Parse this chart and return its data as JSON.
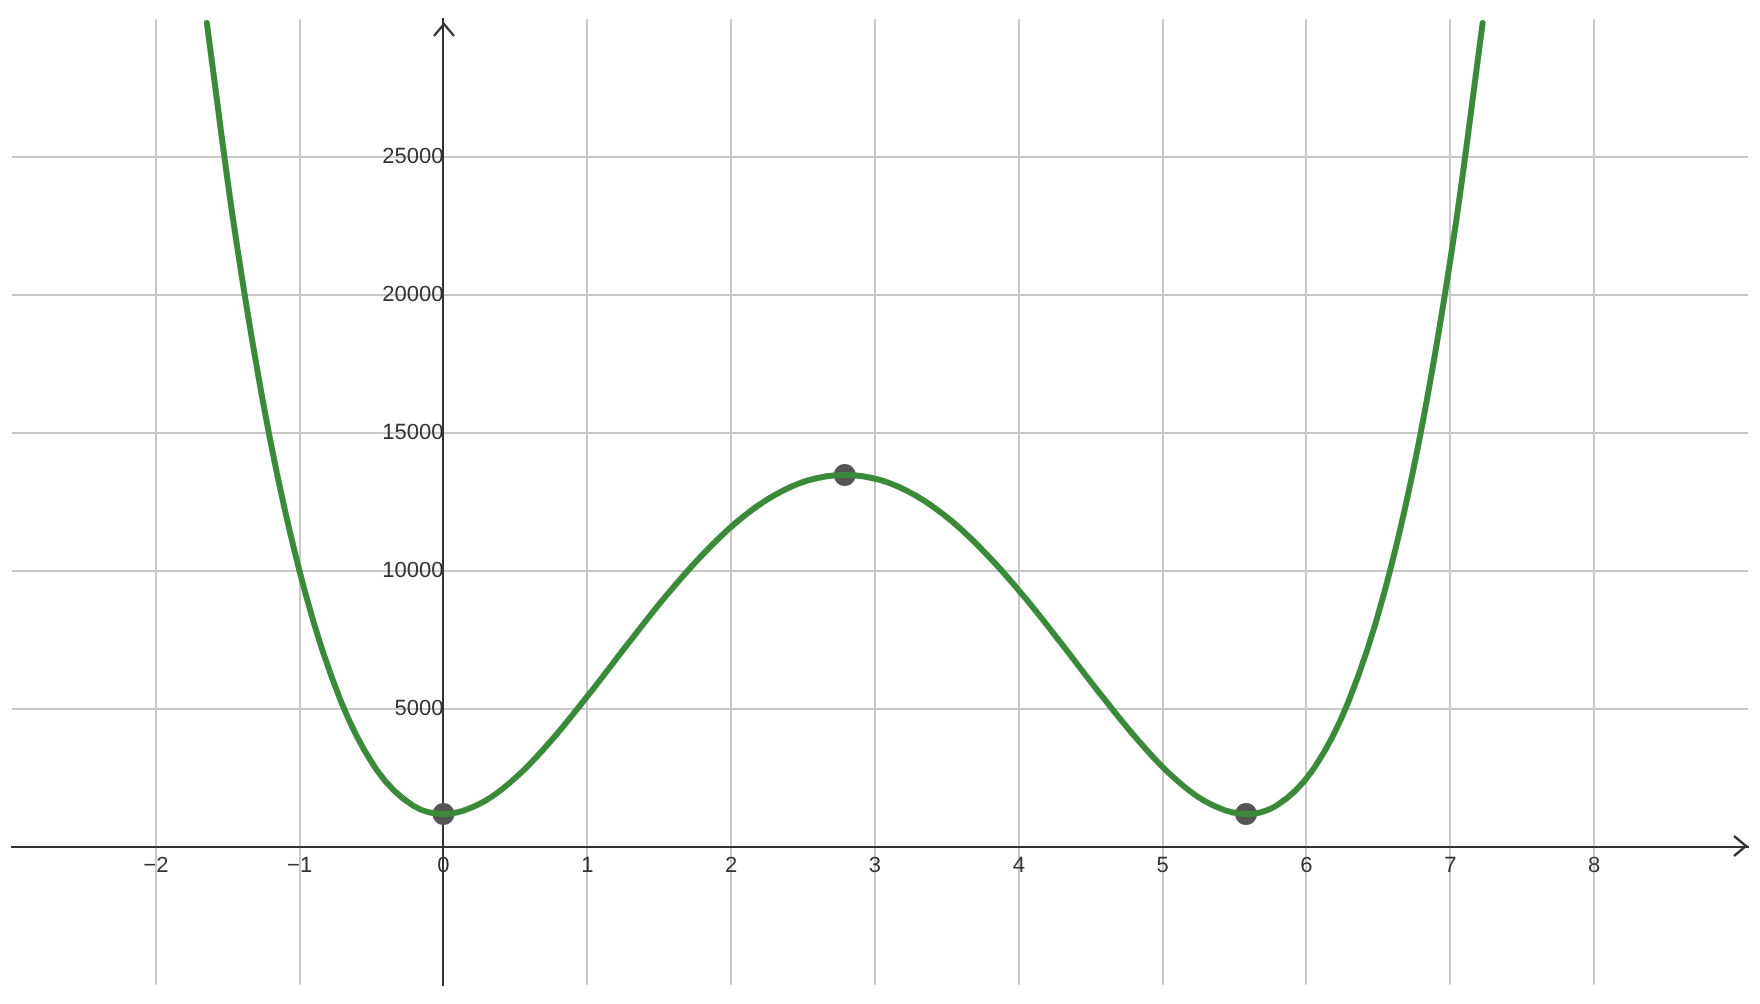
{
  "chart_data": {
    "type": "line",
    "xlim": [
      -3,
      9.07
    ],
    "ylim": [
      -5000,
      30000
    ],
    "xticks": [
      -2,
      -1,
      0,
      1,
      2,
      3,
      4,
      5,
      6,
      7,
      8
    ],
    "yticks": [
      5000,
      10000,
      15000,
      20000,
      25000
    ],
    "grid": true,
    "legend": false,
    "series": [
      {
        "color": "#3a8a3a",
        "marker": "none",
        "x": [
          -1.645,
          -1.46,
          -1.21,
          -0.96,
          -0.71,
          -0.46,
          -0.21,
          0,
          0.29,
          0.54,
          0.79,
          1.04,
          1.29,
          1.54,
          1.79,
          2.04,
          2.29,
          2.54,
          2.79,
          3.04,
          3.29,
          3.54,
          3.79,
          4.04,
          4.29,
          4.54,
          4.79,
          5.04,
          5.29,
          5.58,
          5.79,
          6.04,
          6.29,
          6.54,
          6.79,
          7.04,
          7.225
        ],
        "values": [
          29860,
          22640,
          14890,
          9190,
          5240,
          2760,
          1490,
          1190,
          1670,
          2690,
          4100,
          5720,
          7410,
          9050,
          10530,
          11780,
          12710,
          13290,
          13480,
          13290,
          12710,
          11780,
          10530,
          9050,
          7410,
          5720,
          4100,
          2690,
          1670,
          1190,
          1490,
          2760,
          5240,
          9190,
          14890,
          22640,
          29860
        ]
      },
      {
        "type": "scatter",
        "color": "#555555",
        "marker": "circle",
        "x": [
          0,
          2.79,
          5.58
        ],
        "values": [
          1190,
          13480,
          1190
        ]
      }
    ]
  }
}
